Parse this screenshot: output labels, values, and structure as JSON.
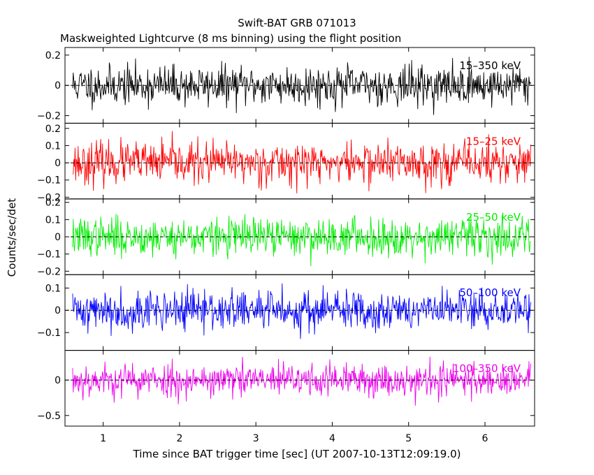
{
  "chart_data": {
    "type": "line",
    "title": "Swift-BAT GRB 071013",
    "subtitle": "Maskweighted Lightcurve (8 ms binning) using the flight position",
    "xlabel": "Time since BAT trigger time [sec] (UT 2007-10-13T12:09:19.0)",
    "ylabel": "Counts/sec/det",
    "xlim": [
      0.5,
      6.65
    ],
    "x_ticks": [
      1,
      2,
      3,
      4,
      5,
      6
    ],
    "x_tick_labels": [
      "1",
      "2",
      "3",
      "4",
      "5",
      "6"
    ],
    "series_x_range": [
      0.6,
      6.6
    ],
    "series_bin_sec": 0.008,
    "panels": [
      {
        "name": "15-350 keV",
        "band_label": "15–350 keV",
        "color": "#000000",
        "ylim": [
          -0.25,
          0.25
        ],
        "y_ticks": [
          -0.2,
          0,
          0.2
        ],
        "y_tick_labels": [
          "−0.2",
          "0",
          "0.2"
        ],
        "noise_amplitude": 0.065,
        "seed": 11
      },
      {
        "name": "15-25 keV",
        "band_label": "15–25 keV",
        "color": "#ff0000",
        "ylim": [
          -0.21,
          0.23
        ],
        "y_ticks": [
          -0.2,
          -0.1,
          0,
          0.1,
          0.2
        ],
        "y_tick_labels": [
          "−0.2",
          "−0.1",
          "0",
          "0.1",
          "0.2"
        ],
        "noise_amplitude": 0.06,
        "seed": 23
      },
      {
        "name": "25-50 keV",
        "band_label": "25–50 keV",
        "color": "#00ee00",
        "ylim": [
          -0.22,
          0.22
        ],
        "y_ticks": [
          -0.2,
          -0.1,
          0,
          0.1,
          0.2
        ],
        "y_tick_labels": [
          "−0.2",
          "−0.1",
          "0",
          "0.1",
          "0.2"
        ],
        "noise_amplitude": 0.055,
        "seed": 37
      },
      {
        "name": "50-100 keV",
        "band_label": "50–100 keV",
        "color": "#0000ff",
        "ylim": [
          -0.18,
          0.16
        ],
        "y_ticks": [
          -0.1,
          0,
          0.1
        ],
        "y_tick_labels": [
          "−0.1",
          "0",
          "0.1"
        ],
        "noise_amplitude": 0.045,
        "seed": 41
      },
      {
        "name": "100-350 keV",
        "band_label": "100–350 keV",
        "color": "#ee00ee",
        "ylim": [
          -0.65,
          0.42
        ],
        "y_ticks": [
          -0.5,
          0
        ],
        "y_tick_labels": [
          "−0.5",
          "0"
        ],
        "noise_amplitude": 0.12,
        "seed": 53
      }
    ]
  }
}
